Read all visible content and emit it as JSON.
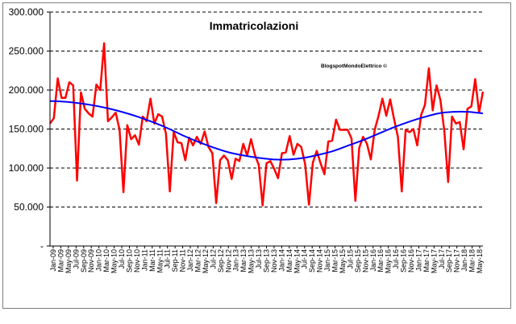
{
  "chart_data": {
    "type": "line",
    "title": "Immatricolazioni",
    "annotation": "BlogspotMondoElettrico ©",
    "xlabel": "",
    "ylabel": "",
    "ylim": [
      0,
      300000
    ],
    "y_tick_values": [
      0,
      50000,
      100000,
      150000,
      200000,
      250000,
      300000
    ],
    "y_tick_labels": [
      "-",
      "50.000",
      "100.000",
      "150.000",
      "200.000",
      "250.000",
      "300.000"
    ],
    "x_tick_labels": [
      "Jan-09",
      "Mar-09",
      "May-09",
      "Jul-09",
      "Sep-09",
      "Nov-09",
      "Jan-10",
      "Mar-10",
      "May-10",
      "Jul-10",
      "Sep-10",
      "Nov-10",
      "Jan-11",
      "Mar-11",
      "May-11",
      "Jul-11",
      "Sep-11",
      "Nov-11",
      "Jan-12",
      "Mar-12",
      "May-12",
      "Jul-12",
      "Sep-12",
      "Nov-12",
      "Jan-13",
      "Mar-13",
      "May-13",
      "Jul-13",
      "Sep-13",
      "Nov-13",
      "Jan-14",
      "Mar-14",
      "May-14",
      "Jul-14",
      "Sep-14",
      "Nov-14",
      "Jan-15",
      "Mar-15",
      "May-15",
      "Jul-15",
      "Sep-15",
      "Nov-15",
      "Jan-16",
      "Mar-16",
      "May-16",
      "Jul-16",
      "Sep-16",
      "Nov-16",
      "Jan-17",
      "Mar-17",
      "May-17",
      "Jul-17",
      "Sep-17",
      "Nov-17",
      "Jan-18",
      "Mar-18",
      "May-18"
    ],
    "grid": "horizontal-dashed",
    "series": [
      {
        "name": "",
        "color": "#ff0000",
        "values": [
          157000,
          164000,
          215000,
          190000,
          190000,
          210000,
          206000,
          84000,
          197000,
          176000,
          170000,
          166000,
          207000,
          200000,
          260000,
          160000,
          165000,
          171000,
          149000,
          69000,
          155000,
          137000,
          142000,
          130000,
          166000,
          160000,
          189000,
          157000,
          169000,
          166000,
          144000,
          70000,
          146000,
          133000,
          132000,
          110000,
          139000,
          129000,
          140000,
          131000,
          147000,
          127000,
          119000,
          55000,
          110000,
          116000,
          110000,
          86000,
          112000,
          109000,
          131000,
          116000,
          137000,
          117000,
          104000,
          52000,
          106000,
          109000,
          99000,
          87000,
          119000,
          120000,
          141000,
          117000,
          131000,
          127000,
          105000,
          53000,
          107000,
          122000,
          106000,
          92000,
          134000,
          135000,
          162000,
          149000,
          149000,
          149000,
          138000,
          58000,
          126000,
          140000,
          131000,
          111000,
          149000,
          167000,
          189000,
          167000,
          188000,
          163000,
          140000,
          70000,
          149000,
          146000,
          150000,
          129000,
          168000,
          181000,
          228000,
          174000,
          206000,
          187000,
          148000,
          82000,
          166000,
          157000,
          159000,
          124000,
          176000,
          179000,
          214000,
          171000,
          198000
        ],
        "style": "solid"
      },
      {
        "name": "",
        "color": "#0000ff",
        "values": [
          186000,
          185000,
          183000,
          180000,
          176000,
          171000,
          165000,
          158000,
          150000,
          141000,
          133000,
          126000,
          120000,
          116000,
          113000,
          111000,
          111000,
          113000,
          117000,
          122000,
          129000,
          136000,
          144000,
          152000,
          159000,
          165000,
          170000,
          172000,
          172000,
          170000
        ],
        "style": "trend"
      }
    ]
  }
}
